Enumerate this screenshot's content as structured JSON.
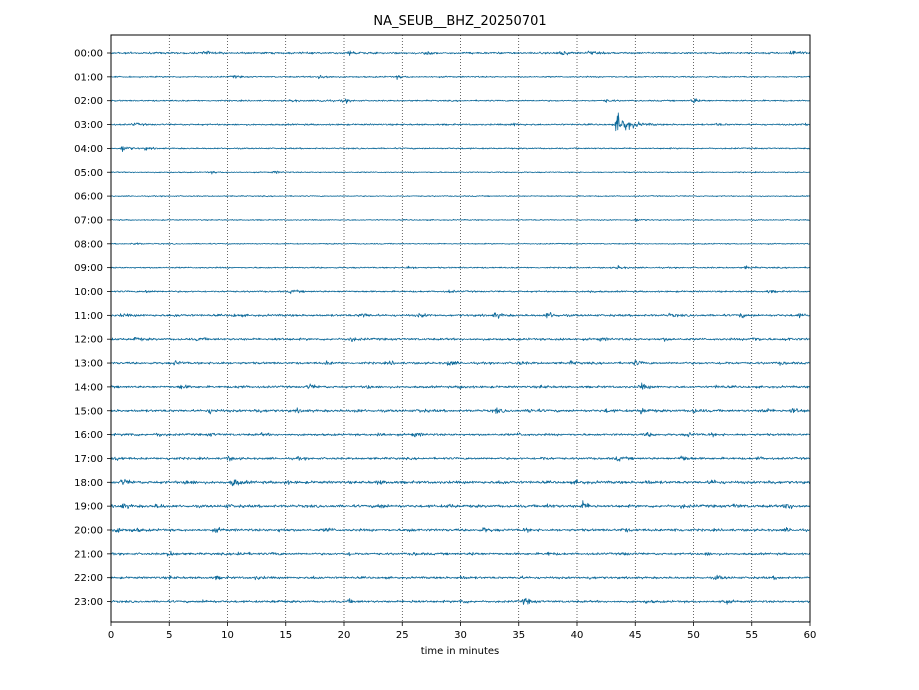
{
  "chart_data": {
    "type": "line",
    "title": "NA_SEUB__BHZ_20250701",
    "xlabel": "time in minutes",
    "ylabel": "",
    "xlim": [
      0,
      60
    ],
    "x_ticks": [
      0,
      5,
      10,
      15,
      20,
      25,
      30,
      35,
      40,
      45,
      50,
      55,
      60
    ],
    "grid": "vertical dotted at every 5 minutes",
    "trace_color": "#0e6a9a",
    "rows": [
      {
        "label": "00:00",
        "noise": 0.7,
        "events": [
          [
            8,
            1.5
          ],
          [
            20.5,
            1.8
          ],
          [
            27,
            1.2
          ],
          [
            38.5,
            3.0
          ],
          [
            41,
            1.0
          ],
          [
            58.5,
            2.4
          ]
        ]
      },
      {
        "label": "01:00",
        "noise": 0.5,
        "events": [
          [
            10.5,
            1.0
          ],
          [
            18,
            2.4
          ],
          [
            24.5,
            1.2
          ]
        ]
      },
      {
        "label": "02:00",
        "noise": 0.5,
        "events": [
          [
            15.5,
            1.0
          ],
          [
            18,
            1.4
          ],
          [
            20,
            1.6
          ],
          [
            42.5,
            1.0
          ],
          [
            50,
            2.0
          ]
        ]
      },
      {
        "label": "03:00",
        "noise": 0.6,
        "events": [
          [
            2,
            1.0
          ],
          [
            34.5,
            1.0
          ],
          [
            43.5,
            8.0
          ],
          [
            52,
            0.8
          ],
          [
            59.5,
            1.2
          ]
        ]
      },
      {
        "label": "04:00",
        "noise": 0.5,
        "events": [
          [
            1,
            2.6
          ],
          [
            3,
            1.0
          ]
        ]
      },
      {
        "label": "05:00",
        "noise": 0.4,
        "events": [
          [
            8.5,
            0.9
          ],
          [
            14,
            1.0
          ]
        ]
      },
      {
        "label": "06:00",
        "noise": 0.4,
        "events": []
      },
      {
        "label": "07:00",
        "noise": 0.4,
        "events": [
          [
            45,
            1.2
          ]
        ]
      },
      {
        "label": "08:00",
        "noise": 0.4,
        "events": [
          [
            2,
            0.8
          ]
        ]
      },
      {
        "label": "09:00",
        "noise": 0.5,
        "events": [
          [
            25.5,
            1.0
          ],
          [
            43.5,
            1.4
          ],
          [
            54.5,
            1.0
          ]
        ]
      },
      {
        "label": "10:00",
        "noise": 0.6,
        "events": [
          [
            3,
            1.0
          ],
          [
            15.5,
            1.2
          ],
          [
            29,
            0.8
          ],
          [
            41,
            0.9
          ],
          [
            56.5,
            0.9
          ]
        ]
      },
      {
        "label": "11:00",
        "noise": 0.8,
        "events": [
          [
            1,
            1.0
          ],
          [
            5.5,
            0.9
          ],
          [
            10.5,
            0.8
          ],
          [
            21.5,
            1.8
          ],
          [
            26.5,
            1.2
          ],
          [
            33,
            2.0
          ],
          [
            37.5,
            2.8
          ],
          [
            48,
            1.0
          ],
          [
            54,
            1.4
          ],
          [
            59,
            1.2
          ]
        ]
      },
      {
        "label": "12:00",
        "noise": 0.8,
        "events": [
          [
            2,
            1.4
          ],
          [
            7.5,
            1.0
          ],
          [
            14,
            0.9
          ],
          [
            20.5,
            1.8
          ],
          [
            38.5,
            1.0
          ],
          [
            42,
            1.2
          ],
          [
            47.5,
            0.9
          ],
          [
            55,
            2.2
          ],
          [
            58,
            0.9
          ]
        ]
      },
      {
        "label": "13:00",
        "noise": 0.8,
        "events": [
          [
            5.5,
            1.6
          ],
          [
            9,
            0.9
          ],
          [
            18.5,
            1.0
          ],
          [
            24,
            1.0
          ],
          [
            29,
            2.0
          ],
          [
            35,
            1.2
          ],
          [
            39.5,
            1.0
          ],
          [
            45,
            1.8
          ],
          [
            52.5,
            1.0
          ],
          [
            57.5,
            1.0
          ]
        ]
      },
      {
        "label": "14:00",
        "noise": 0.8,
        "events": [
          [
            6,
            1.6
          ],
          [
            11,
            0.9
          ],
          [
            17,
            2.0
          ],
          [
            22,
            1.2
          ],
          [
            30,
            1.0
          ],
          [
            37,
            1.0
          ],
          [
            45.5,
            2.4
          ],
          [
            52,
            0.9
          ]
        ]
      },
      {
        "label": "15:00",
        "noise": 0.9,
        "events": [
          [
            8.5,
            1.6
          ],
          [
            12.5,
            1.6
          ],
          [
            16,
            1.0
          ],
          [
            21,
            0.9
          ],
          [
            26.5,
            1.0
          ],
          [
            33,
            1.8
          ],
          [
            36,
            1.6
          ],
          [
            42.5,
            1.0
          ],
          [
            45.5,
            2.4
          ],
          [
            50,
            1.4
          ],
          [
            56,
            1.6
          ],
          [
            58.5,
            2.6
          ]
        ]
      },
      {
        "label": "16:00",
        "noise": 0.8,
        "events": [
          [
            1.5,
            1.2
          ],
          [
            4,
            1.6
          ],
          [
            8.5,
            1.0
          ],
          [
            13,
            0.8
          ],
          [
            23,
            1.6
          ],
          [
            26,
            1.8
          ],
          [
            35,
            0.9
          ],
          [
            46,
            1.4
          ],
          [
            49.5,
            1.6
          ],
          [
            51.5,
            1.0
          ]
        ]
      },
      {
        "label": "17:00",
        "noise": 0.8,
        "events": [
          [
            0.5,
            1.2
          ],
          [
            5,
            1.0
          ],
          [
            10,
            1.6
          ],
          [
            16,
            0.8
          ],
          [
            37,
            1.0
          ],
          [
            43.5,
            1.6
          ],
          [
            49,
            2.4
          ],
          [
            55.5,
            0.9
          ]
        ]
      },
      {
        "label": "18:00",
        "noise": 1.0,
        "events": [
          [
            1,
            2.2
          ],
          [
            6.5,
            1.8
          ],
          [
            10.5,
            3.0
          ],
          [
            15,
            1.0
          ],
          [
            23,
            1.2
          ],
          [
            33.5,
            1.2
          ],
          [
            40,
            1.0
          ],
          [
            46,
            1.2
          ],
          [
            51.5,
            1.8
          ],
          [
            56.5,
            1.2
          ]
        ]
      },
      {
        "label": "19:00",
        "noise": 1.0,
        "events": [
          [
            1,
            1.6
          ],
          [
            4,
            1.4
          ],
          [
            10,
            1.0
          ],
          [
            23,
            1.6
          ],
          [
            29,
            1.0
          ],
          [
            37.5,
            1.0
          ],
          [
            40.5,
            2.8
          ],
          [
            49,
            1.0
          ],
          [
            53.5,
            1.2
          ],
          [
            58,
            2.6
          ]
        ]
      },
      {
        "label": "20:00",
        "noise": 0.9,
        "events": [
          [
            0.5,
            1.6
          ],
          [
            2,
            1.4
          ],
          [
            9,
            1.4
          ],
          [
            14.5,
            1.0
          ],
          [
            18.5,
            1.4
          ],
          [
            25.5,
            1.0
          ],
          [
            32,
            1.6
          ],
          [
            35.5,
            1.2
          ],
          [
            44,
            1.2
          ],
          [
            48.5,
            1.2
          ],
          [
            58,
            1.0
          ]
        ]
      },
      {
        "label": "21:00",
        "noise": 0.8,
        "events": [
          [
            5,
            1.8
          ],
          [
            11,
            1.8
          ],
          [
            14,
            0.9
          ],
          [
            20.5,
            1.0
          ],
          [
            26,
            0.9
          ],
          [
            31,
            0.9
          ],
          [
            37.5,
            1.0
          ],
          [
            44,
            0.9
          ],
          [
            51,
            1.2
          ]
        ]
      },
      {
        "label": "22:00",
        "noise": 0.8,
        "events": [
          [
            5,
            1.0
          ],
          [
            9,
            1.0
          ],
          [
            12.5,
            1.2
          ],
          [
            17.5,
            0.9
          ],
          [
            30,
            1.2
          ],
          [
            35,
            0.8
          ],
          [
            41,
            0.9
          ],
          [
            52,
            1.6
          ],
          [
            57,
            0.9
          ]
        ]
      },
      {
        "label": "23:00",
        "noise": 0.8,
        "events": [
          [
            8,
            0.9
          ],
          [
            14,
            0.9
          ],
          [
            20.5,
            1.2
          ],
          [
            26,
            0.9
          ],
          [
            30,
            1.6
          ],
          [
            35.5,
            2.4
          ],
          [
            46,
            0.9
          ],
          [
            52.5,
            1.8
          ]
        ]
      }
    ]
  }
}
